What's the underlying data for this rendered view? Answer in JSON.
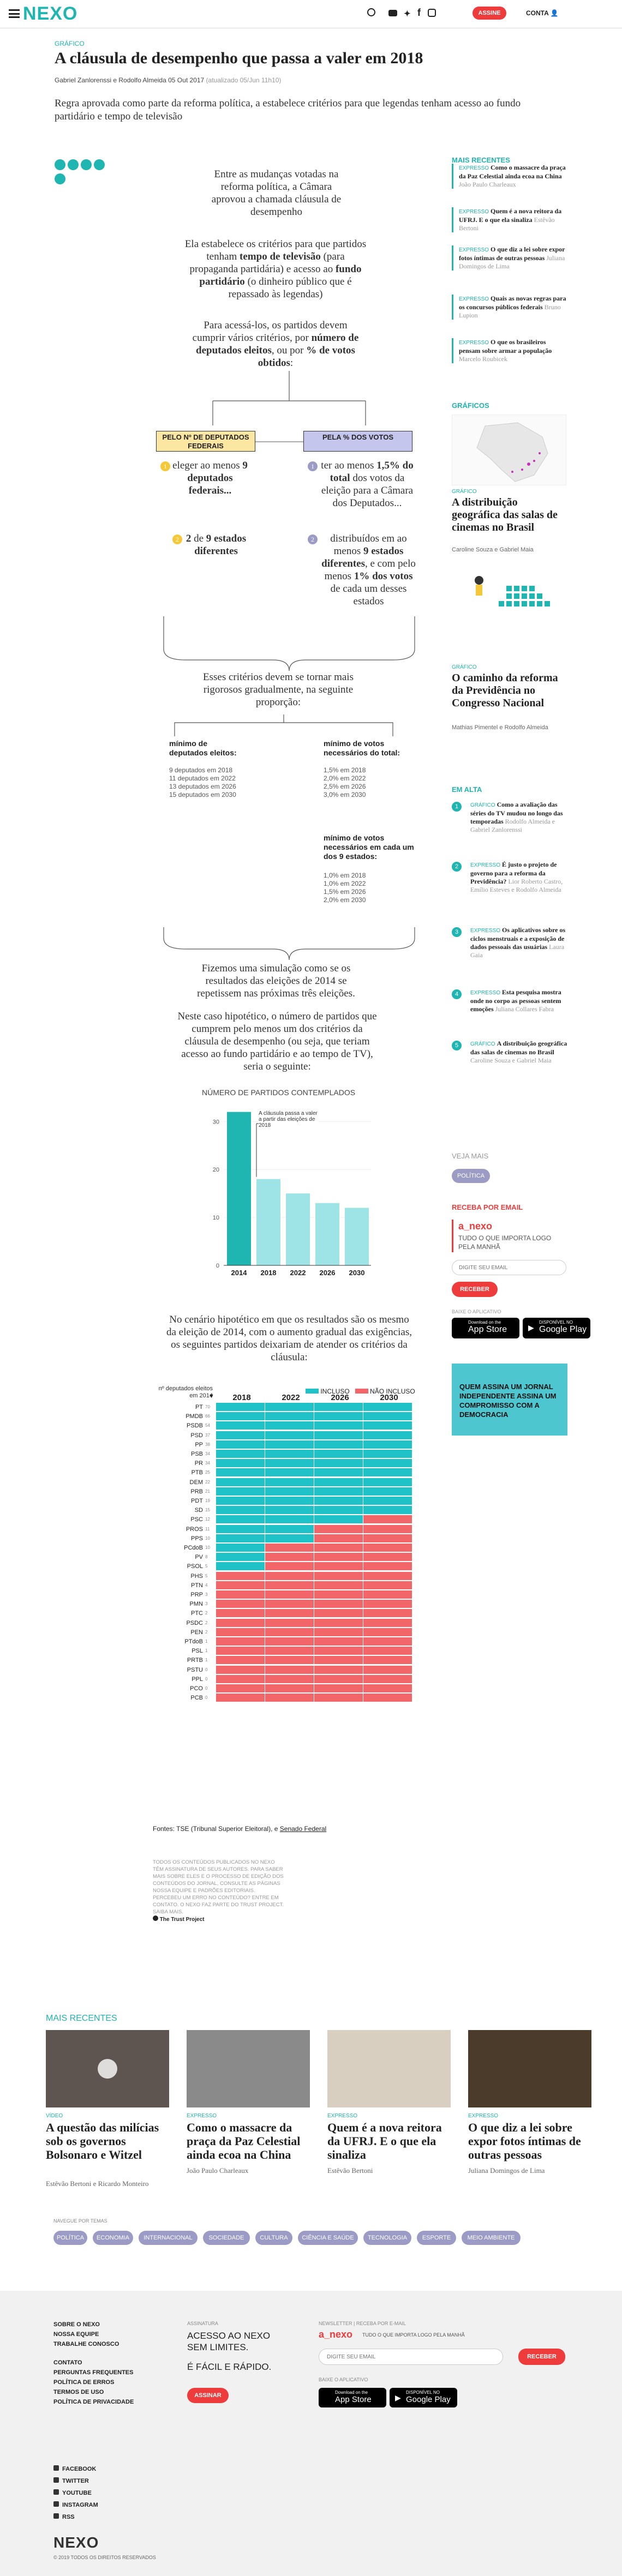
{
  "header": {
    "logo": "NEXO",
    "subscribe": "ASSINE",
    "account": "CONTA"
  },
  "article": {
    "kicker": "GRÁFICO",
    "title": "A cláusula de desempenho que passa a valer em 2018",
    "byline": "Gabriel Zanlorenssi e Rodolfo Almeida",
    "date": "05 Out 2017",
    "updated": "(atualizado 05/Jun 11h10)",
    "lede": "Regra aprovada como parte da reforma política, a estabelece critérios para que legendas tenham acesso ao fundo partidário e tempo de televisão"
  },
  "graphic": {
    "p1": "Entre as mudanças votadas na reforma política, a Câmara aprovou a chamada cláusula de desempenho",
    "p2a": "Ela estabelece os critérios para que partidos tenham ",
    "p2b": "tempo de televisão",
    "p2c": " (para propaganda partidária) e acesso ao ",
    "p2d": "fundo partidário",
    "p2e": " (o dinheiro público que é repassado às legendas)",
    "p3a": "Para acessá-los, os partidos devem cumprir vários critérios, por ",
    "p3b": "número de deputados eleitos",
    "p3c": ", ou por ",
    "p3d": "% de votos obtidos",
    ":": ":",
    "boxL": "PELO Nº DE DEPUTADOS FEDERAIS",
    "boxR": "PELA % DOS VOTOS",
    "L1a": "eleger ao menos ",
    "L1b": "9 deputados federais...",
    "L2a": "2",
    "L2b": " de ",
    "L2c": "9 estados diferentes",
    "R1a": "ter ao menos ",
    "R1b": "1,5% do total",
    "R1c": " dos votos da eleição para a Câmara dos Deputados...",
    "R2a": "distribuídos em ao menos ",
    "R2b": "9 estados diferentes",
    "R2c": ", e com pelo menos ",
    "R2d": "1% dos votos",
    "R2e": " de cada um desses estados",
    "p4": "Esses critérios devem se tornar mais rigorosos gradualmente, na seguinte proporção:",
    "minDepTitle": "mínimo de deputados eleitos:",
    "minDep": [
      "9 deputados em 2018",
      "11 deputados em 2022",
      "13 deputados em 2026",
      "15 deputados em 2030"
    ],
    "minVotTitle": "mínimo de votos necessários do total:",
    "minVot": [
      "1,5% em 2018",
      "2,0% em 2022",
      "2,5% em 2026",
      "3,0% em 2030"
    ],
    "minStTitle": "mínimo de votos necessários em cada um dos 9 estados:",
    "minSt": [
      "1,0% em 2018",
      "1,0% em 2022",
      "1,5% em 2026",
      "2,0% em 2030"
    ],
    "p5": "Fizemos uma simulação como se os resultados das eleições de 2014 se repetissem nas próximas três eleições.",
    "p6": "Neste caso hipotético, o número de partidos que cumprem pelo menos um dos critérios da cláusula de desempenho (ou seja, que teriam acesso ao fundo partidário e ao tempo de TV), seria o seguinte:",
    "p7": "No cenário hipotético em que os resultados são os mesmo da eleição de 2014, com o aumento gradual das exigências, os seguintes partidos deixariam de atender os critérios da cláusula:",
    "sources_label": "Fontes: TSE (Tribunal Superior Eleitoral), e ",
    "sources_link": "Senado Federal",
    "disclaimer": "TODOS OS CONTEÚDOS PUBLICADOS NO NEXO TÊM ASSINATURA DE SEUS AUTORES. PARA SABER MAIS SOBRE ELES E O PROCESSO DE EDIÇÃO DOS CONTEÚDOS DO JORNAL, CONSULTE AS PÁGINAS NOSSA EQUIPE E PADRÕES EDITORIAIS. PERCEBEU UM ERRO NO CONTEÚDO? ENTRE EM CONTATO. O NEXO FAZ PARTE DO TRUST PROJECT. SAIBA MAIS.",
    "trust": "The Trust Project"
  },
  "chart_data": [
    {
      "type": "bar",
      "title": "NÚMERO DE PARTIDOS CONTEMPLADOS",
      "categories": [
        "2014",
        "2018",
        "2022",
        "2026",
        "2030"
      ],
      "values": [
        32,
        18,
        15,
        13,
        12
      ],
      "ylim": [
        0,
        32
      ],
      "yticks": [
        0,
        10,
        20,
        30
      ],
      "annotation": "A cláusula passa a valer a partir das eleições de 2018",
      "color": "#1fb5b0"
    },
    {
      "type": "heatmap",
      "ylabel": "nº deputados eleitos em 2014",
      "legend": [
        "INCLUSO",
        "NÃO INCLUSO"
      ],
      "colors": {
        "incluso": "#1fc2c6",
        "nao": "#f2666a"
      },
      "columns": [
        "2018",
        "2022",
        "2026",
        "2030"
      ],
      "parties": [
        "PT",
        "PMDB",
        "PSDB",
        "PSD",
        "PP",
        "PSB",
        "PR",
        "PTB",
        "DEM",
        "PRB",
        "PDT",
        "SD",
        "PSC",
        "PROS",
        "PPS",
        "PCdoB",
        "PV",
        "PSOL",
        "PHS",
        "PTN",
        "PRP",
        "PMN",
        "PTC",
        "PSDC",
        "PEN",
        "PTdoB",
        "PSL",
        "PRTB",
        "PSTU",
        "PPL",
        "PCO",
        "PCB"
      ],
      "deputies": [
        70,
        66,
        54,
        37,
        38,
        34,
        34,
        25,
        22,
        21,
        19,
        15,
        12,
        11,
        10,
        10,
        8,
        5,
        5,
        4,
        3,
        3,
        2,
        2,
        2,
        1,
        1,
        1,
        0,
        0,
        0,
        0
      ],
      "included_through": [
        4,
        4,
        4,
        4,
        4,
        4,
        4,
        4,
        4,
        4,
        4,
        4,
        3,
        2,
        2,
        1,
        1,
        1,
        0,
        0,
        0,
        0,
        0,
        0,
        0,
        0,
        0,
        0,
        0,
        0,
        0,
        0
      ]
    }
  ],
  "sidebar": {
    "mais_recentes": "MAIS RECENTES",
    "items": [
      {
        "k": "EXPRESSO",
        "t": "Como o massacre da praça da Paz Celestial ainda ecoa na China",
        "a": "João Paulo Charleaux"
      },
      {
        "k": "EXPRESSO",
        "t": "Quem é a nova reitora da UFRJ. E o que ela sinaliza",
        "a": "Estêvão Bertoni"
      },
      {
        "k": "EXPRESSO",
        "t": "O que diz a lei sobre expor fotos íntimas de outras pessoas",
        "a": "Juliana Domingos de Lima"
      },
      {
        "k": "EXPRESSO",
        "t": "Quais as novas regras para os concursos públicos federais",
        "a": "Bruno Lupion"
      },
      {
        "k": "EXPRESSO",
        "t": "O que os brasileiros pensam sobre armar a população",
        "a": "Marcelo Roubicek"
      }
    ],
    "graficos": "GRÁFICOS",
    "g1k": "GRÁFICO",
    "g1t": "A distribuição geográfica das salas de cinemas no Brasil",
    "g1a": "Caroline Souza e Gabriel Maia",
    "g2k": "GRÁFICO",
    "g2t": "O caminho da reforma da Previdência no Congresso Nacional",
    "g2a": "Mathias Pimentel e Rodolfo Almeida",
    "em_alta": "EM ALTA",
    "alta": [
      {
        "n": "1",
        "k": "GRÁFICO",
        "t": "Como a avaliação das séries do TV mudou no longo das temporadas",
        "a": "Rodolfo Almeida e Gabriel Zanlorenssi"
      },
      {
        "n": "2",
        "k": "EXPRESSO",
        "t": "É justo o projeto de governo para a reforma da Previdência?",
        "a": "Lior Roberto Castro, Emílio Esteves e Rodolfo Almeida"
      },
      {
        "n": "3",
        "k": "EXPRESSO",
        "t": "Os aplicativos sobre os ciclos menstruais e a exposição de dados pessoais das usuárias",
        "a": "Laura Gaia"
      },
      {
        "n": "4",
        "k": "EXPRESSO",
        "t": "Esta pesquisa mostra onde no corpo as pessoas sentem emoções",
        "a": "Juliana Collares Fabra"
      },
      {
        "n": "5",
        "k": "GRÁFICO",
        "t": "A distribuição geográfica das salas de cinemas no Brasil",
        "a": "Caroline Souza e Gabriel Maia"
      }
    ],
    "veja_mais": "VEJA MAIS",
    "tag": "POLÍTICA",
    "newsletter": "RECEBA POR EMAIL",
    "nl_brand": "a_nexo",
    "nl_desc": "TUDO O QUE IMPORTA LOGO PELA MANHÃ",
    "nl_placeholder": "DIGITE SEU EMAIL",
    "nl_button": "RECEBER",
    "app": "BAIXE O APLICATIVO",
    "appstore": "App Store",
    "googleplay": "Google Play",
    "appstore_pre": "Download on the",
    "google_pre": "DISPONÍVEL NO",
    "promo": "QUEM ASSINA UM JORNAL INDEPENDENTE ASSINA UM COMPROMISSO COM A DEMOCRACIA"
  },
  "recent": {
    "title": "MAIS RECENTES",
    "cards": [
      {
        "k": "VÍDEO",
        "t": "A questão das milícias sob os governos Bolsonaro e Witzel",
        "a": "Estêvão Bertoni e Ricardo Monteiro"
      },
      {
        "k": "EXPRESSO",
        "t": "Como o massacre da praça da Paz Celestial ainda ecoa na China",
        "a": "João Paulo Charleaux"
      },
      {
        "k": "EXPRESSO",
        "t": "Quem é a nova reitora da UFRJ. E o que ela sinaliza",
        "a": "Estêvão Bertoni"
      },
      {
        "k": "EXPRESSO",
        "t": "O que diz a lei sobre expor fotos íntimas de outras pessoas",
        "a": "Juliana Domingos de Lima"
      }
    ]
  },
  "topics": {
    "title": "NAVEGUE POR TEMAS",
    "items": [
      "POLÍTICA",
      "ECONOMIA",
      "INTERNACIONAL",
      "SOCIEDADE",
      "CULTURA",
      "CIÊNCIA E SAÚDE",
      "TECNOLOGIA",
      "ESPORTE",
      "MEIO AMBIENTE"
    ]
  },
  "footer": {
    "links": [
      "SOBRE O NEXO",
      "NOSSA EQUIPE",
      "TRABALHE CONOSCO",
      "CONTATO",
      "PERGUNTAS FREQUENTES",
      "POLÍTICA DE ERROS",
      "TERMOS DE USO",
      "POLÍTICA DE PRIVACIDADE"
    ],
    "social": [
      "FACEBOOK",
      "TWITTER",
      "YOUTUBE",
      "INSTAGRAM",
      "RSS"
    ],
    "sub_label": "ASSINATURA",
    "sub_text1": "ACESSO AO NEXO SEM LIMITES.",
    "sub_text2": "É FÁCIL E RÁPIDO.",
    "sub_btn": "ASSINAR",
    "nl_label": "NEWSLETTER | RECEBA POR E-MAIL",
    "nl_brand": "a_nexo",
    "nl_desc": "TUDO O QUE IMPORTA LOGO PELA MANHÃ",
    "nl_placeholder": "DIGITE SEU EMAIL",
    "nl_btn": "RECEBER",
    "app": "BAIXE O APLICATIVO",
    "logo": "NEXO",
    "copy": "© 2019 TODOS OS DIREITOS RESERVADOS"
  }
}
